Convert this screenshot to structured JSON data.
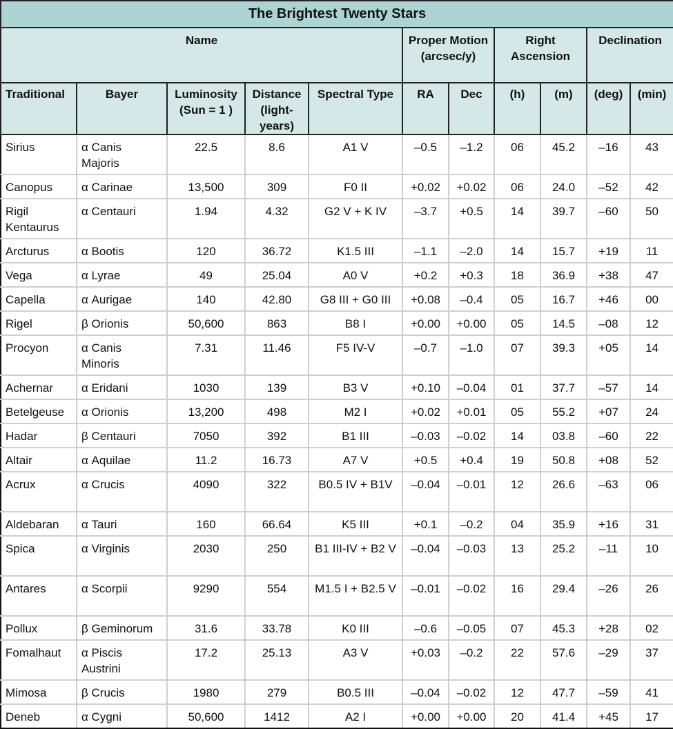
{
  "title": "The Brightest Twenty Stars",
  "group_headers": [
    "Name",
    "Proper Motion (arcsec/y)",
    "Right Ascension",
    "Declination"
  ],
  "columns": [
    "Traditional",
    "Bayer",
    "Luminosity (Sun = 1 )",
    "Distance (light-years)",
    "Spectral Type",
    "RA",
    "Dec",
    "(h)",
    "(m)",
    "(deg)",
    "(min)"
  ],
  "rows": [
    {
      "lines": 2,
      "cells": [
        "Sirius",
        "α Canis Majoris",
        "22.5",
        "8.6",
        "A1 V",
        "–0.5",
        "–1.2",
        "06",
        "45.2",
        "–16",
        "43"
      ]
    },
    {
      "lines": 1,
      "cells": [
        "Canopus",
        "α Carinae",
        "13,500",
        "309",
        "F0 II",
        "+0.02",
        "+0.02",
        "06",
        "24.0",
        "–52",
        "42"
      ]
    },
    {
      "lines": 2,
      "cells": [
        "Rigil Kentaurus",
        "α Centauri",
        "1.94",
        "4.32",
        "G2 V + K IV",
        "–3.7",
        "+0.5",
        "14",
        "39.7",
        "–60",
        "50"
      ]
    },
    {
      "lines": 1,
      "cells": [
        "Arcturus",
        "α Bootis",
        "120",
        "36.72",
        "K1.5 III",
        "–1.1",
        "–2.0",
        "14",
        "15.7",
        "+19",
        "11"
      ]
    },
    {
      "lines": 1,
      "cells": [
        "Vega",
        "α Lyrae",
        "49",
        "25.04",
        "A0 V",
        "+0.2",
        "+0.3",
        "18",
        "36.9",
        "+38",
        "47"
      ]
    },
    {
      "lines": 1,
      "cells": [
        "Capella",
        "α Aurigae",
        "140",
        "42.80",
        "G8 III + G0 III",
        "+0.08",
        "–0.4",
        "05",
        "16.7",
        "+46",
        "00"
      ]
    },
    {
      "lines": 1,
      "cells": [
        "Rigel",
        "β Orionis",
        "50,600",
        "863",
        "B8 I",
        "+0.00",
        "+0.00",
        "05",
        "14.5",
        "–08",
        "12"
      ]
    },
    {
      "lines": 2,
      "cells": [
        "Procyon",
        "α Canis Minoris",
        "7.31",
        "11.46",
        "F5 IV-V",
        "–0.7",
        "–1.0",
        "07",
        "39.3",
        "+05",
        "14"
      ]
    },
    {
      "lines": 1,
      "cells": [
        "Achernar",
        "α Eridani",
        "1030",
        "139",
        "B3 V",
        "+0.10",
        "–0.04",
        "01",
        "37.7",
        "–57",
        "14"
      ]
    },
    {
      "lines": 1,
      "cells": [
        "Betelgeuse",
        "α Orionis",
        "13,200",
        "498",
        "M2 I",
        "+0.02",
        "+0.01",
        "05",
        "55.2",
        "+07",
        "24"
      ]
    },
    {
      "lines": 1,
      "cells": [
        "Hadar",
        "β Centauri",
        "7050",
        "392",
        "B1 III",
        "–0.03",
        "–0.02",
        "14",
        "03.8",
        "–60",
        "22"
      ]
    },
    {
      "lines": 1,
      "cells": [
        "Altair",
        "α Aquilae",
        "11.2",
        "16.73",
        "A7 V",
        "+0.5",
        "+0.4",
        "19",
        "50.8",
        "+08",
        "52"
      ]
    },
    {
      "lines": 2,
      "cells": [
        "Acrux",
        "α Crucis",
        "4090",
        "322",
        "B0.5 IV + B1V",
        "–0.04",
        "–0.01",
        "12",
        "26.6",
        "–63",
        "06"
      ]
    },
    {
      "lines": 1,
      "cells": [
        "Aldebaran",
        "α Tauri",
        "160",
        "66.64",
        "K5 III",
        "+0.1",
        "–0.2",
        "04",
        "35.9",
        "+16",
        "31"
      ]
    },
    {
      "lines": 2,
      "cells": [
        "Spica",
        "α Virginis",
        "2030",
        "250",
        "B1 III-IV + B2 V",
        "–0.04",
        "–0.03",
        "13",
        "25.2",
        "–11",
        "10"
      ]
    },
    {
      "lines": 2,
      "cells": [
        "Antares",
        "α Scorpii",
        "9290",
        "554",
        "M1.5 I + B2.5 V",
        "–0.01",
        "–0.02",
        "16",
        "29.4",
        "–26",
        "26"
      ]
    },
    {
      "lines": 1,
      "cells": [
        "Pollux",
        "β Geminorum",
        "31.6",
        "33.78",
        "K0 III",
        "–0.6",
        "–0.05",
        "07",
        "45.3",
        "+28",
        "02"
      ]
    },
    {
      "lines": 2,
      "cells": [
        "Fomalhaut",
        "α Piscis Austrini",
        "17.2",
        "25.13",
        "A3 V",
        "+0.03",
        "–0.2",
        "22",
        "57.6",
        "–29",
        "37"
      ]
    },
    {
      "lines": 1,
      "cells": [
        "Mimosa",
        "β Crucis",
        "1980",
        "279",
        "B0.5 III",
        "–0.04",
        "–0.02",
        "12",
        "47.7",
        "–59",
        "41"
      ]
    },
    {
      "lines": 1,
      "cells": [
        "Deneb",
        "α Cygni",
        "50,600",
        "1412",
        "A2 I",
        "+0.00",
        "+0.00",
        "20",
        "41.4",
        "+45",
        "17"
      ]
    }
  ]
}
